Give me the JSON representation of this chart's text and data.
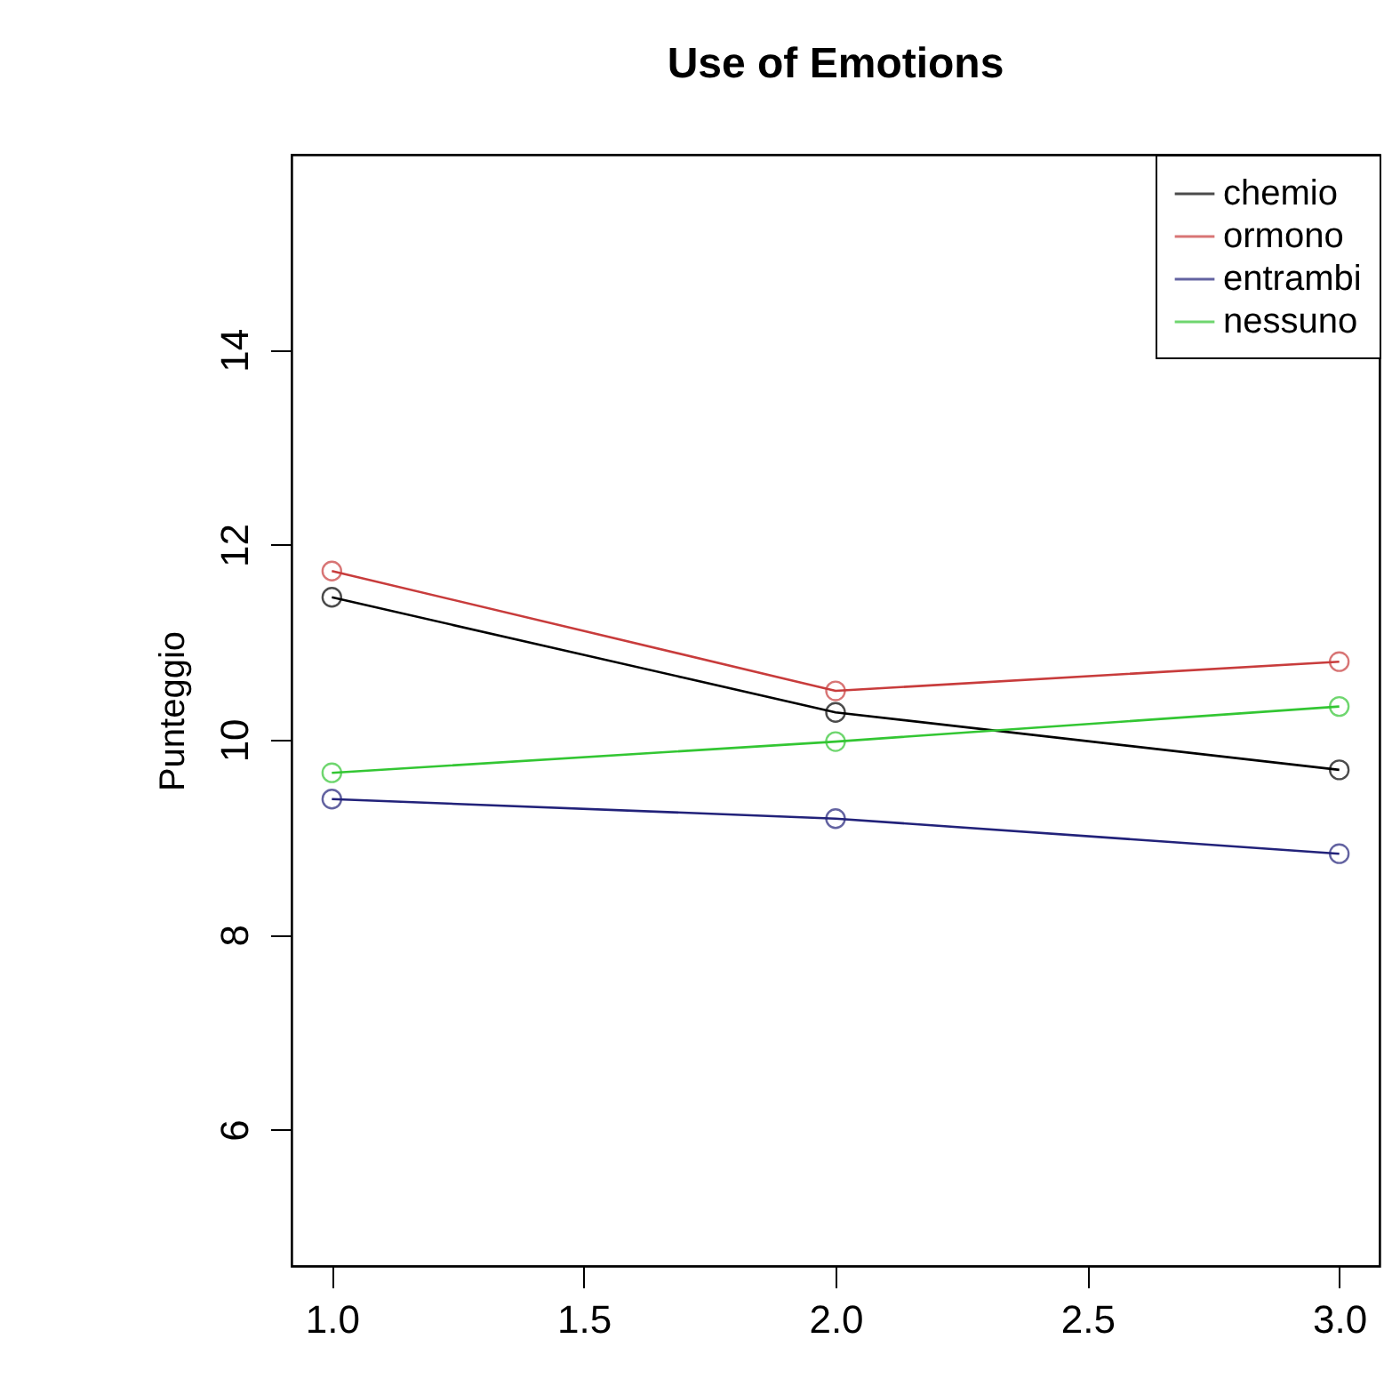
{
  "chart_data": {
    "type": "line",
    "title": "Use of Emotions",
    "ylabel": "Punteggio",
    "x": [
      1,
      2,
      3
    ],
    "series": [
      {
        "name": "chemio",
        "color": "#000000",
        "values": [
          11.46,
          10.28,
          9.69
        ]
      },
      {
        "name": "ormono",
        "color": "#c83c3c",
        "values": [
          11.73,
          10.5,
          10.8
        ]
      },
      {
        "name": "entrambi",
        "color": "#22227a",
        "values": [
          9.39,
          9.19,
          8.83
        ]
      },
      {
        "name": "nessuno",
        "color": "#33c633",
        "values": [
          9.66,
          9.98,
          10.34
        ]
      }
    ],
    "xlim": [
      0.92,
      3.08
    ],
    "ylim": [
      4.6,
      16.0
    ],
    "xticks": [
      {
        "value": 1,
        "label": "1.0"
      },
      {
        "value": 1.5,
        "label": "1.5"
      },
      {
        "value": 2,
        "label": "2.0"
      },
      {
        "value": 2.5,
        "label": "2.5"
      },
      {
        "value": 3,
        "label": "3.0"
      }
    ],
    "yticks": [
      6,
      8,
      10,
      12,
      14
    ],
    "grid": false,
    "legend": "top right",
    "marker": "circle"
  }
}
